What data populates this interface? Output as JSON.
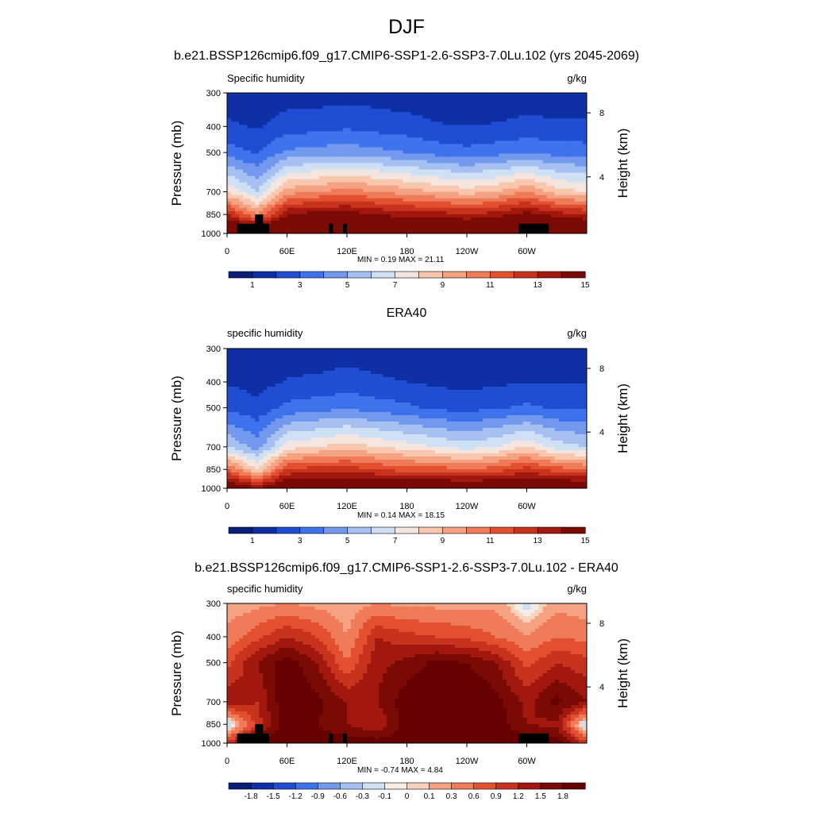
{
  "main_title": "DJF",
  "panels": [
    {
      "title": "b.e21.BSSP126cmip6.f09_g17.CMIP6-SSP1-2.6-SSP3-7.0Lu.102 (yrs 2045-2069)",
      "left_label": "Specific humidity",
      "right_label": "g/kg",
      "minmax": "MIN =   0.19  MAX =  21.11",
      "colorbar_labels": [
        "1",
        "3",
        "5",
        "7",
        "9",
        "11",
        "13",
        "15"
      ]
    },
    {
      "title": "ERA40",
      "left_label": "specific humidity",
      "right_label": "g/kg",
      "minmax": "MIN =   0.14  MAX =  18.15",
      "colorbar_labels": [
        "1",
        "3",
        "5",
        "7",
        "9",
        "11",
        "13",
        "15"
      ]
    },
    {
      "title": "b.e21.BSSP126cmip6.f09_g17.CMIP6-SSP1-2.6-SSP3-7.0Lu.102 - ERA40",
      "left_label": "specific humidity",
      "right_label": "g/kg",
      "minmax": "MIN =  -0.74  MAX =   4.84",
      "colorbar_labels": [
        "-1.8",
        "-1.5",
        "-1.2",
        "-0.9",
        "-0.6",
        "-0.3",
        "-0.1",
        "0",
        "0.1",
        "0.3",
        "0.6",
        "0.9",
        "1.2",
        "1.5",
        "1.8"
      ]
    }
  ],
  "axes": {
    "y_label": "Pressure (mb)",
    "y2_label": "Height (km)",
    "y_ticks": [
      "300",
      "400",
      "500",
      "700",
      "850",
      "1000"
    ],
    "y2_ticks": [
      "8",
      "4"
    ],
    "x_ticks": [
      "0",
      "60E",
      "120E",
      "180",
      "120W",
      "60W"
    ]
  },
  "palettes": {
    "humidity": [
      "#0a1e78",
      "#0f2fa5",
      "#1f4dd3",
      "#3f73ec",
      "#7399ef",
      "#a6c0f2",
      "#cfe0f5",
      "#f4e6de",
      "#f8c7ae",
      "#f4a282",
      "#ef7b59",
      "#e3502f",
      "#c8331d",
      "#a3180e",
      "#7b0a05"
    ],
    "difference": [
      "#0a1e78",
      "#0f2fa5",
      "#1f4dd3",
      "#3f73ec",
      "#7399ef",
      "#a6c0f2",
      "#cfe0f5",
      "#f6ece6",
      "#f9d3bf",
      "#f4a282",
      "#ef7b59",
      "#e3502f",
      "#c8331d",
      "#a3180e",
      "#7b0a05",
      "#660000"
    ]
  },
  "chart_data": [
    {
      "type": "heatmap",
      "title": "b.e21.BSSP126cmip6.f09_g17.CMIP6-SSP1-2.6-SSP3-7.0Lu.102 (yrs 2045-2069)",
      "variable": "Specific humidity",
      "units": "g/kg",
      "xlabel": "",
      "ylabel": "Pressure (mb)",
      "y2label": "Height (km)",
      "x": [
        0,
        30,
        60,
        90,
        120,
        150,
        180,
        210,
        240,
        270,
        300,
        330,
        360
      ],
      "y": [
        300,
        400,
        500,
        700,
        850,
        1000
      ],
      "z": [
        [
          0.4,
          0.3,
          0.5,
          0.5,
          0.6,
          0.5,
          0.4,
          0.3,
          0.3,
          0.3,
          0.4,
          0.4,
          0.4
        ],
        [
          1.2,
          0.9,
          1.5,
          1.6,
          1.8,
          1.6,
          1.4,
          1.1,
          1.0,
          1.1,
          1.3,
          1.2,
          1.2
        ],
        [
          2.5,
          1.9,
          3.2,
          3.4,
          3.6,
          3.3,
          3.0,
          2.6,
          2.3,
          2.6,
          2.9,
          2.6,
          2.5
        ],
        [
          7.0,
          5.0,
          8.5,
          9.0,
          9.5,
          9.0,
          8.5,
          8.0,
          7.5,
          8.0,
          9.0,
          7.5,
          7.0
        ],
        [
          12.0,
          9.0,
          13.0,
          13.5,
          13.5,
          13.0,
          12.5,
          12.5,
          12.0,
          12.5,
          13.5,
          12.5,
          12.0
        ],
        [
          16.0,
          16.0,
          16.0,
          16.0,
          16.0,
          16.0,
          16.0,
          16.0,
          16.0,
          16.0,
          16.0,
          16.0,
          16.0
        ]
      ],
      "min": 0.19,
      "max": 21.11,
      "levels": [
        0,
        1,
        2,
        3,
        4,
        5,
        6,
        7,
        8,
        9,
        10,
        11,
        12,
        13,
        14,
        15
      ],
      "colorbar_labels": [
        "1",
        "3",
        "5",
        "7",
        "9",
        "11",
        "13",
        "15"
      ]
    },
    {
      "type": "heatmap",
      "title": "ERA40",
      "variable": "specific humidity",
      "units": "g/kg",
      "xlabel": "",
      "ylabel": "Pressure (mb)",
      "y2label": "Height (km)",
      "x": [
        0,
        30,
        60,
        90,
        120,
        150,
        180,
        210,
        240,
        270,
        300,
        330,
        360
      ],
      "y": [
        300,
        400,
        500,
        700,
        850,
        1000
      ],
      "z": [
        [
          0.3,
          0.2,
          0.3,
          0.4,
          0.5,
          0.4,
          0.3,
          0.2,
          0.2,
          0.2,
          0.3,
          0.3,
          0.3
        ],
        [
          0.9,
          0.6,
          1.1,
          1.2,
          1.4,
          1.2,
          1.0,
          0.8,
          0.7,
          0.8,
          1.0,
          0.9,
          0.9
        ],
        [
          1.8,
          1.3,
          2.3,
          2.6,
          2.8,
          2.5,
          2.2,
          1.8,
          1.6,
          1.9,
          2.2,
          1.9,
          1.8
        ],
        [
          5.0,
          3.5,
          6.5,
          7.0,
          7.5,
          7.0,
          6.5,
          6.0,
          5.5,
          6.0,
          7.0,
          5.5,
          5.0
        ],
        [
          10.0,
          7.0,
          11.0,
          11.5,
          11.5,
          11.0,
          10.5,
          10.5,
          10.0,
          10.5,
          11.5,
          10.5,
          10.0
        ],
        [
          15.0,
          13.0,
          15.0,
          15.0,
          15.0,
          15.0,
          15.0,
          15.0,
          15.0,
          15.0,
          15.0,
          15.0,
          15.0
        ]
      ],
      "min": 0.14,
      "max": 18.15,
      "levels": [
        0,
        1,
        2,
        3,
        4,
        5,
        6,
        7,
        8,
        9,
        10,
        11,
        12,
        13,
        14,
        15
      ],
      "colorbar_labels": [
        "1",
        "3",
        "5",
        "7",
        "9",
        "11",
        "13",
        "15"
      ]
    },
    {
      "type": "heatmap",
      "title": "b.e21.BSSP126cmip6.f09_g17.CMIP6-SSP1-2.6-SSP3-7.0Lu.102 - ERA40",
      "variable": "specific humidity",
      "units": "g/kg",
      "xlabel": "",
      "ylabel": "Pressure (mb)",
      "y2label": "Height (km)",
      "x": [
        0,
        30,
        60,
        90,
        120,
        150,
        180,
        210,
        240,
        270,
        300,
        330,
        360
      ],
      "y": [
        300,
        400,
        500,
        700,
        850,
        1000
      ],
      "z": [
        [
          0.1,
          0.2,
          0.3,
          0.2,
          0.1,
          0.3,
          0.2,
          0.2,
          0.2,
          0.2,
          -0.2,
          0.2,
          0.1
        ],
        [
          0.4,
          0.8,
          1.2,
          0.9,
          0.3,
          1.2,
          1.0,
          0.9,
          0.8,
          0.6,
          0.3,
          0.6,
          0.5
        ],
        [
          0.8,
          1.5,
          2.0,
          1.5,
          0.6,
          1.4,
          1.6,
          1.9,
          1.8,
          1.5,
          0.8,
          1.2,
          1.0
        ],
        [
          1.5,
          1.2,
          2.1,
          1.9,
          1.5,
          1.5,
          2.0,
          2.1,
          2.2,
          1.9,
          1.4,
          1.9,
          1.5
        ],
        [
          -0.4,
          1.0,
          2.0,
          1.8,
          1.5,
          1.2,
          2.0,
          2.1,
          2.2,
          2.0,
          1.5,
          1.4,
          -0.4
        ],
        [
          1.0,
          2.0,
          2.0,
          2.0,
          2.0,
          2.0,
          2.0,
          2.0,
          2.0,
          2.0,
          2.0,
          2.0,
          1.0
        ]
      ],
      "min": -0.74,
      "max": 4.84,
      "levels": [
        -1.8,
        -1.5,
        -1.2,
        -0.9,
        -0.6,
        -0.3,
        -0.1,
        0,
        0.1,
        0.3,
        0.6,
        0.9,
        1.2,
        1.5,
        1.8
      ],
      "colorbar_labels": [
        "-1.8",
        "-1.5",
        "-1.2",
        "-0.9",
        "-0.6",
        "-0.3",
        "-0.1",
        "0",
        "0.1",
        "0.3",
        "0.6",
        "0.9",
        "1.2",
        "1.5",
        "1.8"
      ]
    }
  ]
}
